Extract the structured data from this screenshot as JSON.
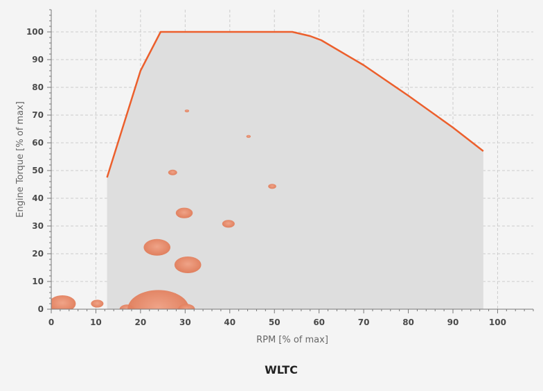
{
  "chart_data": {
    "type": "bubble",
    "title": "WLTC",
    "xlabel": "RPM [% of max]",
    "ylabel": "Engine Torque [% of max]",
    "xlim": [
      0,
      108
    ],
    "ylim": [
      0,
      108
    ],
    "x_ticks": [
      0,
      10,
      20,
      30,
      40,
      50,
      60,
      70,
      80,
      90,
      100
    ],
    "y_ticks": [
      0,
      10,
      20,
      30,
      40,
      50,
      60,
      70,
      80,
      90,
      100
    ],
    "grid": true,
    "envelope": [
      [
        12.5,
        47.5
      ],
      [
        20,
        86
      ],
      [
        24.5,
        100
      ],
      [
        40,
        100
      ],
      [
        54,
        100
      ],
      [
        58,
        98.5
      ],
      [
        60.5,
        97
      ],
      [
        70,
        88
      ],
      [
        80,
        77
      ],
      [
        90,
        65.5
      ],
      [
        96.8,
        57
      ]
    ],
    "points": [
      {
        "x": 2.5,
        "y": 2,
        "r": 3.0
      },
      {
        "x": 10.3,
        "y": 2,
        "r": 1.4
      },
      {
        "x": 17,
        "y": 0,
        "r": 1.7
      },
      {
        "x": 24,
        "y": 0,
        "r": 6.9
      },
      {
        "x": 30.3,
        "y": 0,
        "r": 1.9
      },
      {
        "x": 23.7,
        "y": 22.3,
        "r": 3.0
      },
      {
        "x": 30.6,
        "y": 16,
        "r": 3.0
      },
      {
        "x": 29.8,
        "y": 34.7,
        "r": 1.9
      },
      {
        "x": 39.7,
        "y": 30.8,
        "r": 1.4
      },
      {
        "x": 27.2,
        "y": 49.3,
        "r": 1.0
      },
      {
        "x": 49.5,
        "y": 44.3,
        "r": 0.9
      },
      {
        "x": 30.4,
        "y": 71.5,
        "r": 0.5
      },
      {
        "x": 44.2,
        "y": 62.3,
        "r": 0.5
      }
    ],
    "colors": {
      "envelope_line": "#ec5f2c",
      "envelope_fill": "#dedede",
      "bubble": "#e07a57",
      "bubble_highlight": "#f0a083",
      "grid": "#cccccc",
      "axis": "#777777"
    }
  }
}
